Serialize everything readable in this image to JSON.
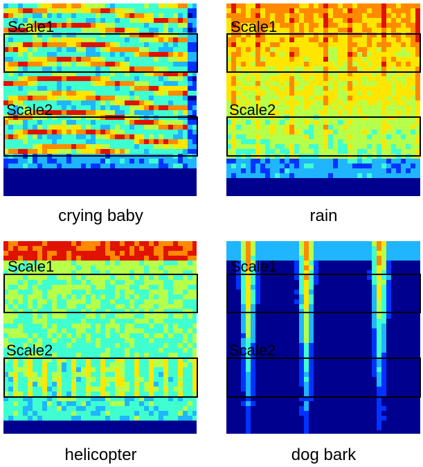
{
  "panels": [
    {
      "caption": "crying baby",
      "scale1_label": "Scale1",
      "scale2_label": "Scale2",
      "palette": [
        "#00008f",
        "#0033ff",
        "#1fb5ff",
        "#3fffd0",
        "#b6ff4a",
        "#ffe600",
        "#ff8a00",
        "#e01200"
      ]
    },
    {
      "caption": "rain",
      "scale1_label": "Scale1",
      "scale2_label": "Scale2",
      "palette": [
        "#00008f",
        "#0033ff",
        "#1fb5ff",
        "#3fffd0",
        "#b6ff4a",
        "#ffe600",
        "#ff8a00",
        "#e01200"
      ]
    },
    {
      "caption": "helicopter",
      "scale1_label": "Scale1",
      "scale2_label": "Scale2",
      "palette": [
        "#00008f",
        "#0033ff",
        "#1fb5ff",
        "#3fffd0",
        "#b6ff4a",
        "#ffe600",
        "#ff8a00",
        "#e01200"
      ]
    },
    {
      "caption": "dog bark",
      "scale1_label": "Scale1",
      "scale2_label": "Scale2",
      "palette": [
        "#00008f",
        "#0033ff",
        "#1fb5ff",
        "#3fffd0",
        "#b6ff4a",
        "#ffe600",
        "#ff8a00",
        "#e01200"
      ]
    }
  ]
}
